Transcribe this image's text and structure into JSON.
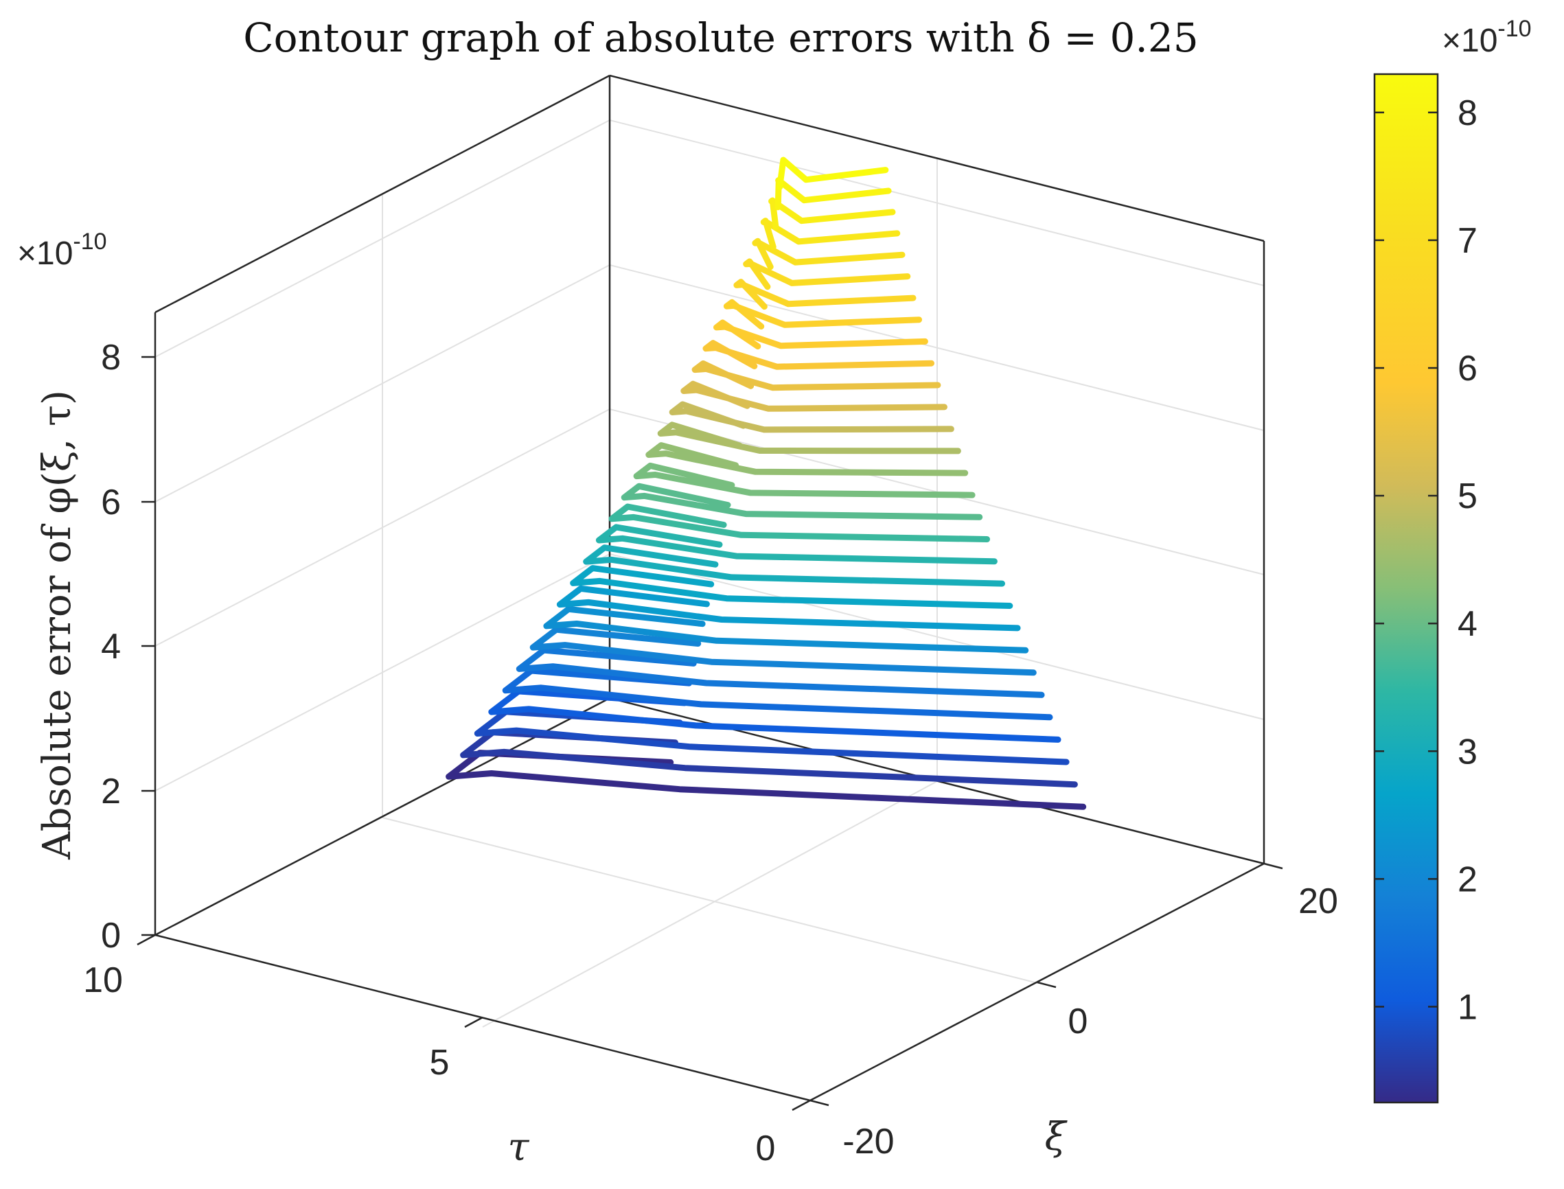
{
  "chart_data": {
    "type": "contour3",
    "title": "Contour graph of absolute errors with δ = 0.25",
    "zlabel": "Absolute error of φ(ξ, τ)",
    "xlabel": "τ",
    "ylabel": "ξ",
    "z_multiplier": "×10",
    "z_multiplier_exponent": "-10",
    "xlim": [
      0,
      10
    ],
    "ylim": [
      -20,
      20
    ],
    "zlim": [
      0,
      8.3
    ],
    "z_ticks": [
      "0",
      "2",
      "4",
      "6",
      "8"
    ],
    "x_ticks": [
      "10",
      "5",
      "0"
    ],
    "y_ticks": [
      "-20",
      "0",
      "20"
    ],
    "grid": true,
    "colorbar": {
      "multiplier": "×10",
      "exponent": "-10",
      "ticks": [
        "1",
        "2",
        "3",
        "4",
        "5",
        "6",
        "7",
        "8"
      ],
      "range": [
        0.25,
        8.3
      ],
      "colormap": "parula"
    },
    "levels": {
      "count": 30,
      "min": 0.25,
      "max": 8.3,
      "units": "×10^-10"
    }
  }
}
